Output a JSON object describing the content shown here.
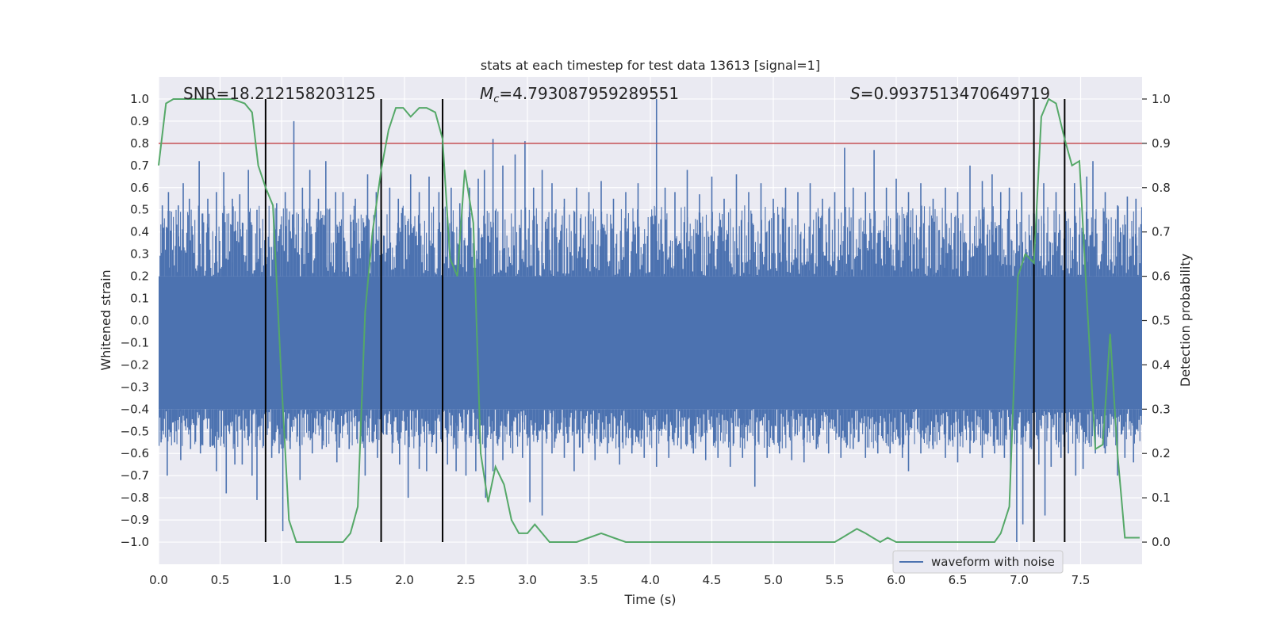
{
  "chart_data": {
    "type": "line",
    "title": "stats at each timestep for test data 13613 [signal=1]",
    "xlabel": "Time (s)",
    "ylabel_left": "Whitened strain",
    "ylabel_right": "Detection probability",
    "xlim": [
      0.0,
      8.0
    ],
    "ylim_left": [
      -1.1,
      1.1
    ],
    "ylim_right": [
      -0.05,
      1.05
    ],
    "x_ticks": [
      "0.0",
      "0.5",
      "1.0",
      "1.5",
      "2.0",
      "2.5",
      "3.0",
      "3.5",
      "4.0",
      "4.5",
      "5.0",
      "5.5",
      "6.0",
      "6.5",
      "7.0",
      "7.5"
    ],
    "y_ticks_left": [
      "−1.0",
      "−0.9",
      "−0.8",
      "−0.7",
      "−0.6",
      "−0.5",
      "−0.4",
      "−0.3",
      "−0.2",
      "−0.1",
      "0.0",
      "0.1",
      "0.2",
      "0.3",
      "0.4",
      "0.5",
      "0.6",
      "0.7",
      "0.8",
      "0.9",
      "1.0"
    ],
    "y_ticks_right": [
      "0.0",
      "0.1",
      "0.2",
      "0.3",
      "0.4",
      "0.5",
      "0.6",
      "0.7",
      "0.8",
      "0.9",
      "1.0"
    ],
    "grid": true,
    "annotations": {
      "snr": "SNR=18.212158203125",
      "mc_symbol": "M",
      "mc_sub": "c",
      "mc_value": "=4.793087959289551",
      "s_symbol": "S",
      "s_value": "=0.9937513470649719"
    },
    "legend": {
      "position": "lower-right",
      "entries": [
        "waveform with noise"
      ]
    },
    "threshold": {
      "value": 0.9,
      "axis": "right",
      "color": "#c44e52"
    },
    "vlines_x": [
      0.87,
      1.81,
      2.31,
      7.12,
      7.37
    ],
    "waveform": {
      "name": "waveform with noise",
      "color": "#4c72b0",
      "band_low": -0.4,
      "band_high": 0.2,
      "spikes_up": [
        [
          0.03,
          0.52
        ],
        [
          0.08,
          0.58
        ],
        [
          0.16,
          0.52
        ],
        [
          0.2,
          0.62
        ],
        [
          0.25,
          0.55
        ],
        [
          0.33,
          0.72
        ],
        [
          0.4,
          0.55
        ],
        [
          0.47,
          0.58
        ],
        [
          0.53,
          0.67
        ],
        [
          0.6,
          0.55
        ],
        [
          0.66,
          0.57
        ],
        [
          0.73,
          0.68
        ],
        [
          0.8,
          0.5
        ],
        [
          0.96,
          0.53
        ],
        [
          1.03,
          0.58
        ],
        [
          1.1,
          0.9
        ],
        [
          1.17,
          0.6
        ],
        [
          1.23,
          0.68
        ],
        [
          1.3,
          0.55
        ],
        [
          1.36,
          0.72
        ],
        [
          1.44,
          0.58
        ],
        [
          1.5,
          0.58
        ],
        [
          1.6,
          0.55
        ],
        [
          1.7,
          0.66
        ],
        [
          1.77,
          0.58
        ],
        [
          1.88,
          0.6
        ],
        [
          1.95,
          0.55
        ],
        [
          2.05,
          0.66
        ],
        [
          2.12,
          0.58
        ],
        [
          2.2,
          0.65
        ],
        [
          2.28,
          0.58
        ],
        [
          2.38,
          0.6
        ],
        [
          2.45,
          0.53
        ],
        [
          2.53,
          0.6
        ],
        [
          2.6,
          0.64
        ],
        [
          2.65,
          0.68
        ],
        [
          2.72,
          0.82
        ],
        [
          2.8,
          0.7
        ],
        [
          2.9,
          0.75
        ],
        [
          2.98,
          0.81
        ],
        [
          3.05,
          0.6
        ],
        [
          3.12,
          0.68
        ],
        [
          3.2,
          0.62
        ],
        [
          3.3,
          0.55
        ],
        [
          3.4,
          0.6
        ],
        [
          3.5,
          0.58
        ],
        [
          3.6,
          0.63
        ],
        [
          3.7,
          0.55
        ],
        [
          3.8,
          0.58
        ],
        [
          3.9,
          0.62
        ],
        [
          4.05,
          1.0
        ],
        [
          4.12,
          0.6
        ],
        [
          4.2,
          0.58
        ],
        [
          4.3,
          0.68
        ],
        [
          4.4,
          0.57
        ],
        [
          4.5,
          0.65
        ],
        [
          4.6,
          0.55
        ],
        [
          4.7,
          0.66
        ],
        [
          4.8,
          0.58
        ],
        [
          4.9,
          0.62
        ],
        [
          5.0,
          0.55
        ],
        [
          5.1,
          0.6
        ],
        [
          5.2,
          0.58
        ],
        [
          5.3,
          0.62
        ],
        [
          5.4,
          0.55
        ],
        [
          5.5,
          0.58
        ],
        [
          5.58,
          0.78
        ],
        [
          5.65,
          0.6
        ],
        [
          5.75,
          0.58
        ],
        [
          5.82,
          0.77
        ],
        [
          5.92,
          0.6
        ],
        [
          6.0,
          0.64
        ],
        [
          6.1,
          0.58
        ],
        [
          6.2,
          0.62
        ],
        [
          6.3,
          0.55
        ],
        [
          6.4,
          0.6
        ],
        [
          6.5,
          0.58
        ],
        [
          6.6,
          0.7
        ],
        [
          6.7,
          0.63
        ],
        [
          6.78,
          0.66
        ],
        [
          6.85,
          0.58
        ],
        [
          6.92,
          0.6
        ],
        [
          7.02,
          0.58
        ],
        [
          7.2,
          0.62
        ],
        [
          7.3,
          0.58
        ],
        [
          7.45,
          0.62
        ],
        [
          7.55,
          0.65
        ],
        [
          7.6,
          0.72
        ],
        [
          7.7,
          0.58
        ],
        [
          7.8,
          0.52
        ],
        [
          7.88,
          0.56
        ],
        [
          7.95,
          0.55
        ]
      ],
      "spikes_down": [
        [
          0.02,
          -0.55
        ],
        [
          0.07,
          -0.7
        ],
        [
          0.13,
          -0.55
        ],
        [
          0.18,
          -0.63
        ],
        [
          0.26,
          -0.58
        ],
        [
          0.34,
          -0.6
        ],
        [
          0.42,
          -0.57
        ],
        [
          0.47,
          -0.68
        ],
        [
          0.55,
          -0.78
        ],
        [
          0.62,
          -0.65
        ],
        [
          0.68,
          -0.65
        ],
        [
          0.76,
          -0.7
        ],
        [
          0.8,
          -0.81
        ],
        [
          0.92,
          -0.62
        ],
        [
          0.98,
          -0.6
        ],
        [
          1.01,
          -0.95
        ],
        [
          1.07,
          -0.58
        ],
        [
          1.15,
          -0.72
        ],
        [
          1.25,
          -0.6
        ],
        [
          1.33,
          -0.58
        ],
        [
          1.45,
          -0.64
        ],
        [
          1.55,
          -0.58
        ],
        [
          1.68,
          -0.7
        ],
        [
          1.78,
          -0.62
        ],
        [
          1.9,
          -0.6
        ],
        [
          1.96,
          -0.65
        ],
        [
          2.03,
          -0.8
        ],
        [
          2.12,
          -0.67
        ],
        [
          2.18,
          -0.68
        ],
        [
          2.26,
          -0.6
        ],
        [
          2.35,
          -0.65
        ],
        [
          2.42,
          -0.68
        ],
        [
          2.5,
          -0.7
        ],
        [
          2.58,
          -0.68
        ],
        [
          2.66,
          -0.8
        ],
        [
          2.72,
          -0.68
        ],
        [
          2.8,
          -0.63
        ],
        [
          2.88,
          -0.6
        ],
        [
          2.96,
          -0.62
        ],
        [
          3.02,
          -0.82
        ],
        [
          3.12,
          -0.88
        ],
        [
          3.2,
          -0.6
        ],
        [
          3.3,
          -0.62
        ],
        [
          3.38,
          -0.68
        ],
        [
          3.45,
          -0.6
        ],
        [
          3.55,
          -0.63
        ],
        [
          3.65,
          -0.6
        ],
        [
          3.75,
          -0.65
        ],
        [
          3.85,
          -0.6
        ],
        [
          3.95,
          -0.62
        ],
        [
          4.05,
          -0.66
        ],
        [
          4.15,
          -0.62
        ],
        [
          4.25,
          -0.58
        ],
        [
          4.35,
          -0.6
        ],
        [
          4.45,
          -0.63
        ],
        [
          4.55,
          -0.62
        ],
        [
          4.65,
          -0.66
        ],
        [
          4.75,
          -0.62
        ],
        [
          4.85,
          -0.75
        ],
        [
          4.95,
          -0.62
        ],
        [
          5.05,
          -0.6
        ],
        [
          5.15,
          -0.63
        ],
        [
          5.25,
          -0.64
        ],
        [
          5.35,
          -0.58
        ],
        [
          5.45,
          -0.6
        ],
        [
          5.55,
          -0.62
        ],
        [
          5.65,
          -0.58
        ],
        [
          5.75,
          -0.62
        ],
        [
          5.85,
          -0.6
        ],
        [
          5.95,
          -0.6
        ],
        [
          6.05,
          -0.62
        ],
        [
          6.1,
          -0.68
        ],
        [
          6.2,
          -0.6
        ],
        [
          6.3,
          -0.58
        ],
        [
          6.4,
          -0.62
        ],
        [
          6.5,
          -0.64
        ],
        [
          6.6,
          -0.6
        ],
        [
          6.7,
          -0.62
        ],
        [
          6.8,
          -0.6
        ],
        [
          6.88,
          -0.62
        ],
        [
          6.93,
          -0.7
        ],
        [
          6.98,
          -1.0
        ],
        [
          7.03,
          -0.92
        ],
        [
          7.1,
          -0.58
        ],
        [
          7.16,
          -0.65
        ],
        [
          7.21,
          -0.88
        ],
        [
          7.26,
          -0.66
        ],
        [
          7.34,
          -0.62
        ],
        [
          7.4,
          -0.6
        ],
        [
          7.46,
          -0.7
        ],
        [
          7.52,
          -0.67
        ],
        [
          7.62,
          -0.6
        ],
        [
          7.7,
          -0.6
        ],
        [
          7.8,
          -0.7
        ],
        [
          7.86,
          -0.62
        ],
        [
          7.93,
          -0.64
        ]
      ]
    },
    "probability": {
      "color": "#55a868",
      "x": [
        0.0,
        0.06,
        0.12,
        0.2,
        0.3,
        0.4,
        0.5,
        0.6,
        0.7,
        0.76,
        0.81,
        0.87,
        0.93,
        1.0,
        1.06,
        1.12,
        1.2,
        1.3,
        1.4,
        1.5,
        1.56,
        1.62,
        1.68,
        1.74,
        1.81,
        1.87,
        1.93,
        1.99,
        2.05,
        2.12,
        2.18,
        2.25,
        2.31,
        2.37,
        2.43,
        2.49,
        2.56,
        2.62,
        2.68,
        2.74,
        2.81,
        2.87,
        2.93,
        3.0,
        3.06,
        3.12,
        3.18,
        3.25,
        3.3,
        3.4,
        3.5,
        3.6,
        3.7,
        3.8,
        3.9,
        4.0,
        4.2,
        4.4,
        4.6,
        4.8,
        5.0,
        5.2,
        5.4,
        5.5,
        5.56,
        5.62,
        5.68,
        5.75,
        5.81,
        5.87,
        5.93,
        6.0,
        6.06,
        6.12,
        6.2,
        6.3,
        6.5,
        6.7,
        6.8,
        6.85,
        6.92,
        6.99,
        7.05,
        7.12,
        7.18,
        7.24,
        7.3,
        7.37,
        7.43,
        7.49,
        7.55,
        7.62,
        7.68,
        7.74,
        7.8,
        7.86,
        7.92,
        7.98
      ],
      "p": [
        0.85,
        0.99,
        1.0,
        1.0,
        1.0,
        1.0,
        1.0,
        1.0,
        0.99,
        0.97,
        0.85,
        0.8,
        0.76,
        0.36,
        0.05,
        0.0,
        0.0,
        0.0,
        0.0,
        0.0,
        0.02,
        0.08,
        0.52,
        0.7,
        0.84,
        0.93,
        0.98,
        0.98,
        0.96,
        0.98,
        0.98,
        0.97,
        0.91,
        0.64,
        0.6,
        0.84,
        0.72,
        0.2,
        0.09,
        0.17,
        0.13,
        0.05,
        0.02,
        0.02,
        0.04,
        0.02,
        0.0,
        0.0,
        0.0,
        0.0,
        0.01,
        0.02,
        0.01,
        0.0,
        0.0,
        0.0,
        0.0,
        0.0,
        0.0,
        0.0,
        0.0,
        0.0,
        0.0,
        0.0,
        0.01,
        0.02,
        0.03,
        0.02,
        0.01,
        0.0,
        0.01,
        0.0,
        0.0,
        0.0,
        0.0,
        0.0,
        0.0,
        0.0,
        0.0,
        0.02,
        0.08,
        0.6,
        0.65,
        0.63,
        0.96,
        1.0,
        0.99,
        0.91,
        0.85,
        0.86,
        0.55,
        0.21,
        0.22,
        0.47,
        0.2,
        0.01,
        0.01,
        0.01
      ]
    }
  }
}
